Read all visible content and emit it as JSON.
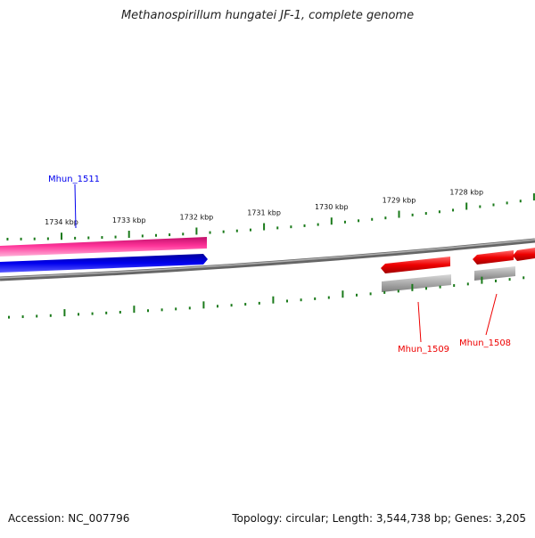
{
  "title": "Methanospirillum hungatei JF-1, complete genome",
  "footer": {
    "accession": "Accession: NC_007796",
    "summary": "Topology: circular; Length: 3,544,738 bp; Genes: 3,205"
  },
  "ruler": {
    "unit": "kbp",
    "labels": [
      {
        "kbp": 1734,
        "text": "1734 kbp"
      },
      {
        "kbp": 1733,
        "text": "1733 kbp"
      },
      {
        "kbp": 1732,
        "text": "1732 kbp"
      },
      {
        "kbp": 1731,
        "text": "1731 kbp"
      },
      {
        "kbp": 1730,
        "text": "1730 kbp"
      },
      {
        "kbp": 1729,
        "text": "1729 kbp"
      },
      {
        "kbp": 1728,
        "text": "1728 kbp"
      }
    ]
  },
  "genes": [
    {
      "name": "Mhun_1511",
      "strand": "forward",
      "color": "#0000ee"
    },
    {
      "name": "Mhun_1509",
      "strand": "reverse",
      "color": "#ee0000"
    },
    {
      "name": "Mhun_1508",
      "strand": "reverse",
      "color": "#ee0000"
    }
  ],
  "colors": {
    "backbone": "#888888",
    "ticks": "#1a7a1a",
    "pink_track": "#ff3399",
    "blue_track": "#0000ee",
    "red_track": "#ee0000",
    "grey_track": "#aaaaaa"
  }
}
